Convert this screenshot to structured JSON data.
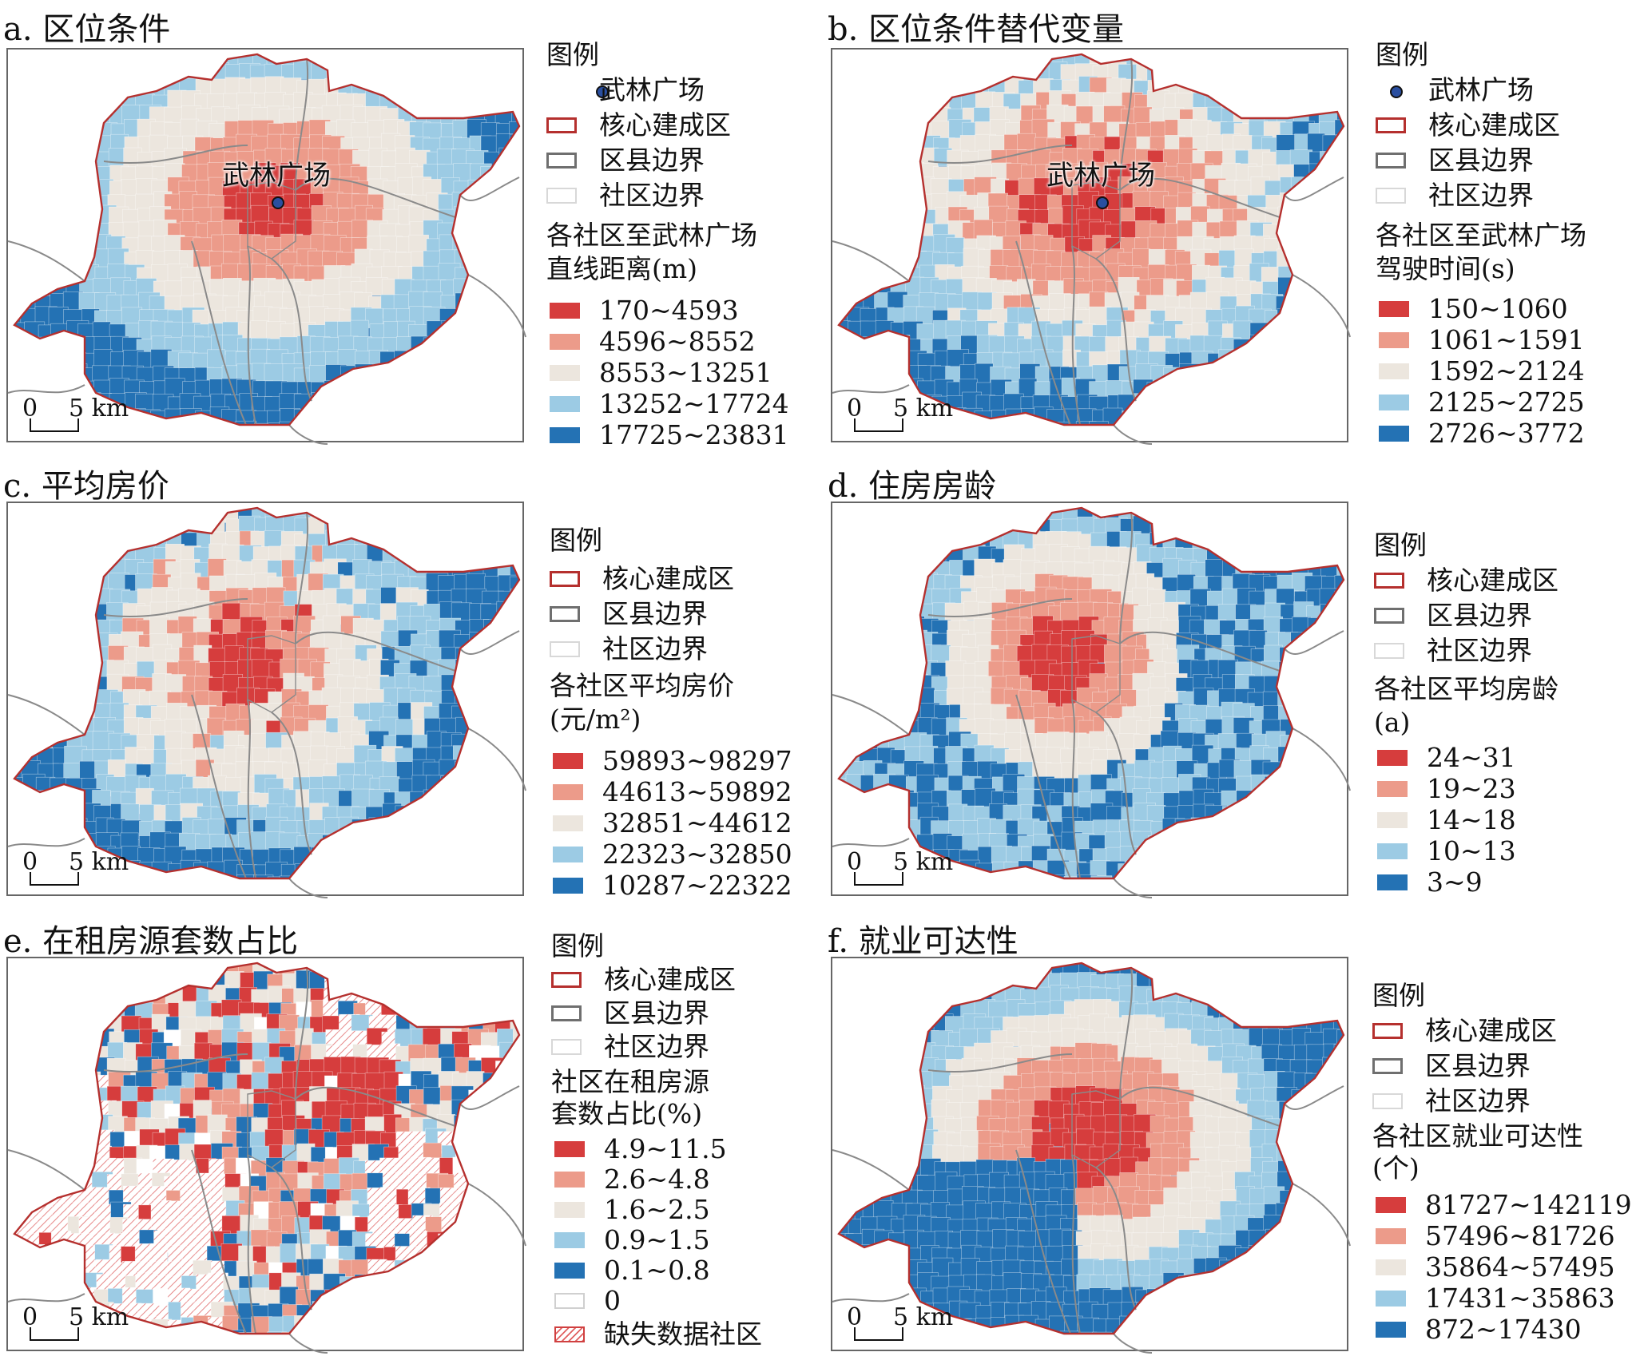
{
  "colors": {
    "c1": "#d63d3d",
    "c2": "#ec9b8a",
    "c3": "#ece6de",
    "c4": "#9ccbe4",
    "c5": "#2472b4"
  },
  "common": {
    "legend_title": "图例",
    "landmark": "武林广场",
    "core_area": "核心建成区",
    "district_boundary": "区县边界",
    "community_boundary": "社区边界",
    "scale_zero": "0",
    "scale_five": "5 km"
  },
  "panels": [
    {
      "id": "a",
      "title": "a. 区位条件",
      "map_label": "武林广场",
      "indicator": [
        "各社区至武林广场",
        "直线距离(m)"
      ],
      "classes": [
        "170~4593",
        "4596~8552",
        "8553~13251",
        "13252~17724",
        "17725~23831"
      ]
    },
    {
      "id": "b",
      "title": "b. 区位条件替代变量",
      "map_label": "武林广场",
      "indicator": [
        "各社区至武林广场",
        "驾驶时间(s)"
      ],
      "classes": [
        "150~1060",
        "1061~1591",
        "1592~2124",
        "2125~2725",
        "2726~3772"
      ]
    },
    {
      "id": "c",
      "title": "c. 平均房价",
      "indicator": [
        "各社区平均房价",
        "(元/m²)"
      ],
      "classes": [
        "59893~98297",
        "44613~59892",
        "32851~44612",
        "22323~32850",
        "10287~22322"
      ]
    },
    {
      "id": "d",
      "title": "d. 住房房龄",
      "indicator": [
        "各社区平均房龄",
        "(a)"
      ],
      "classes": [
        "24~31",
        "19~23",
        "14~18",
        "10~13",
        "3~9"
      ]
    },
    {
      "id": "e",
      "title": "e. 在租房源套数占比",
      "indicator": [
        "社区在租房源",
        "套数占比(%)"
      ],
      "classes": [
        "4.9~11.5",
        "2.6~4.8",
        "1.6~2.5",
        "0.9~1.5",
        "0.1~0.8"
      ],
      "extra_zero": "0",
      "extra_missing": "缺失数据社区"
    },
    {
      "id": "f",
      "title": "f. 就业可达性",
      "indicator": [
        "各社区就业可达性",
        "(个)"
      ],
      "classes": [
        "81727~142119",
        "57496~81726",
        "35864~57495",
        "17431~35863",
        "872~17430"
      ]
    }
  ]
}
